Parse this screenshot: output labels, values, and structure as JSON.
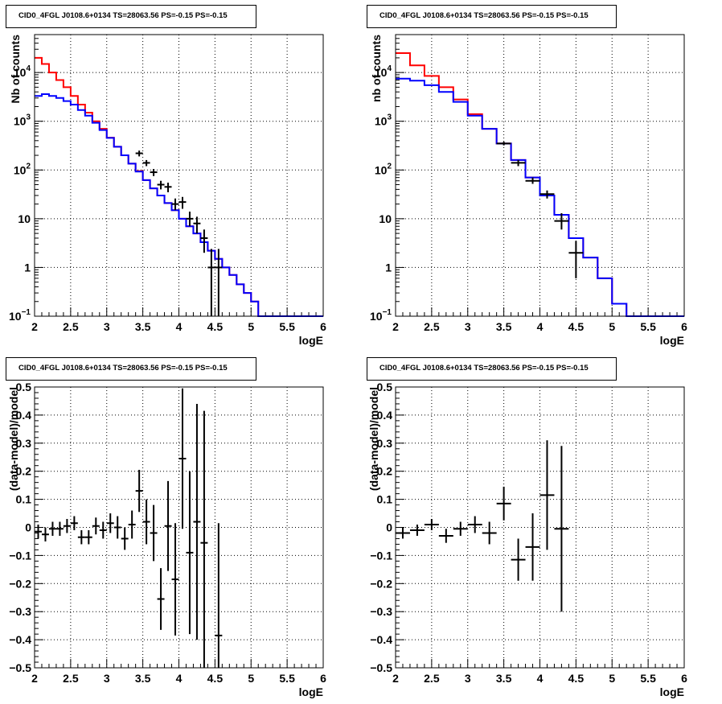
{
  "chart_data": [
    {
      "id": "top-left",
      "type": "histogram-log",
      "title": "CID0_4FGL J0108.6+0134 TS=28063.56 PS=-0.15 PS=-0.15",
      "xlabel": "logE",
      "ylabel": "Nb of counts",
      "xlim": [
        2,
        6
      ],
      "ylim": [
        0.1,
        60000
      ],
      "yscale": "log",
      "grid": true,
      "xticks": [
        "2",
        "2.5",
        "3",
        "3.5",
        "4",
        "4.5",
        "5",
        "5.5",
        "6"
      ],
      "yticks": [
        {
          "v": 0.1,
          "t": "10",
          "sup": "−1"
        },
        {
          "v": 1,
          "t": "1"
        },
        {
          "v": 10,
          "t": "10"
        },
        {
          "v": 100,
          "t": "10",
          "sup": "2"
        },
        {
          "v": 1000,
          "t": "10",
          "sup": "3"
        },
        {
          "v": 10000,
          "t": "10",
          "sup": "4"
        }
      ],
      "bin_edges": [
        2.0,
        2.1,
        2.2,
        2.3,
        2.4,
        2.5,
        2.6,
        2.7,
        2.8,
        2.9,
        3.0,
        3.1,
        3.2,
        3.3,
        3.4,
        3.5,
        3.6,
        3.7,
        3.8,
        3.9,
        4.0,
        4.1,
        4.2,
        4.3,
        4.4,
        4.5,
        4.6,
        4.7,
        4.8,
        4.9,
        5.0,
        5.1,
        5.2,
        5.3,
        5.4,
        5.5,
        5.6,
        5.7,
        5.8,
        5.9,
        6.0
      ],
      "series": [
        {
          "color": "#ff0000",
          "style": "step",
          "values": [
            20000,
            15000,
            10000,
            7000,
            5000,
            3300,
            2200,
            1500,
            1000,
            700,
            460,
            300,
            200,
            135,
            95,
            62,
            42,
            30,
            21,
            15,
            10,
            7,
            5,
            3.3,
            2.2,
            1.5,
            1.0,
            0.7,
            0.45,
            0.3,
            0.2,
            0.1,
            0.1,
            0.1,
            0.1,
            0.1,
            0.1,
            0.1,
            0.1,
            0.1
          ]
        },
        {
          "color": "#0000ff",
          "style": "step",
          "values": [
            3300,
            3600,
            3300,
            3000,
            2600,
            2200,
            1700,
            1300,
            930,
            660,
            455,
            300,
            200,
            135,
            93,
            62,
            42,
            30,
            21,
            15,
            10,
            7,
            5,
            3.3,
            2.2,
            1.5,
            1.0,
            0.7,
            0.45,
            0.3,
            0.2,
            0.1,
            0.1,
            0.1,
            0.1,
            0.1,
            0.1,
            0.1,
            0.1,
            0.1
          ]
        },
        {
          "color": "#000000",
          "style": "errorbar",
          "points": [
            [
              3.45,
              220,
              190,
              250
            ],
            [
              3.55,
              140,
              120,
              160
            ],
            [
              3.65,
              90,
              75,
              105
            ],
            [
              3.75,
              50,
              40,
              60
            ],
            [
              3.85,
              45,
              35,
              55
            ],
            [
              3.95,
              20,
              15,
              26
            ],
            [
              4.05,
              22,
              16,
              28
            ],
            [
              4.15,
              10,
              7,
              14
            ],
            [
              4.25,
              8,
              5,
              11
            ],
            [
              4.35,
              4,
              2,
              6
            ],
            [
              4.45,
              1,
              0.1,
              2.4
            ],
            [
              4.55,
              1,
              0.1,
              2.4
            ]
          ]
        }
      ]
    },
    {
      "id": "top-right",
      "type": "histogram-log",
      "title": "CID0_4FGL J0108.6+0134 TS=28063.56 PS=-0.15 PS=-0.15",
      "xlabel": "logE",
      "ylabel": "nb of counts",
      "xlim": [
        2,
        6
      ],
      "ylim": [
        0.1,
        60000
      ],
      "yscale": "log",
      "grid": true,
      "xticks": [
        "2",
        "2.5",
        "3",
        "3.5",
        "4",
        "4.5",
        "5",
        "5.5",
        "6"
      ],
      "yticks": [
        {
          "v": 0.1,
          "t": "10",
          "sup": "−1"
        },
        {
          "v": 1,
          "t": "1"
        },
        {
          "v": 10,
          "t": "10"
        },
        {
          "v": 100,
          "t": "10",
          "sup": "2"
        },
        {
          "v": 1000,
          "t": "10",
          "sup": "3"
        },
        {
          "v": 10000,
          "t": "10",
          "sup": "4"
        }
      ],
      "bin_edges": [
        2.0,
        2.2,
        2.4,
        2.6,
        2.8,
        3.0,
        3.2,
        3.4,
        3.6,
        3.8,
        4.0,
        4.2,
        4.4,
        4.6,
        4.8,
        5.0,
        5.2,
        5.4,
        5.6,
        5.8,
        6.0
      ],
      "series": [
        {
          "color": "#ff0000",
          "style": "step",
          "values": [
            25000,
            14000,
            8500,
            5000,
            2800,
            1400,
            700,
            350,
            160,
            70,
            30,
            12,
            4,
            1.6,
            0.6,
            0.18,
            0.1,
            0.1,
            0.1,
            0.1
          ]
        },
        {
          "color": "#0000ff",
          "style": "step",
          "values": [
            7500,
            6800,
            5500,
            4000,
            2500,
            1300,
            700,
            350,
            160,
            70,
            30,
            12,
            4,
            1.6,
            0.6,
            0.18,
            0.1,
            0.1,
            0.1,
            0.1
          ]
        },
        {
          "color": "#000000",
          "style": "errorbar",
          "points": [
            [
              3.5,
              350,
              320,
              380
            ],
            [
              3.7,
              140,
              120,
              160
            ],
            [
              3.9,
              60,
              52,
              70
            ],
            [
              4.1,
              32,
              26,
              38
            ],
            [
              4.3,
              9,
              6,
              13
            ],
            [
              4.5,
              2,
              0.6,
              3.5
            ]
          ]
        }
      ]
    },
    {
      "id": "bottom-left",
      "type": "errorbar",
      "title": "CID0_4FGL J0108.6+0134 TS=28063.56 PS=-0.15 PS=-0.15",
      "xlabel": "logE",
      "ylabel": "(data-model)/model",
      "xlim": [
        2,
        6
      ],
      "ylim": [
        -0.5,
        0.5
      ],
      "grid": true,
      "xticks": [
        "2",
        "2.5",
        "3",
        "3.5",
        "4",
        "4.5",
        "5",
        "5.5",
        "6"
      ],
      "yticks": [
        {
          "v": -0.5,
          "t": "−0.5"
        },
        {
          "v": -0.4,
          "t": "−0.4"
        },
        {
          "v": -0.3,
          "t": "−0.3"
        },
        {
          "v": -0.2,
          "t": "−0.2"
        },
        {
          "v": -0.1,
          "t": "−0.1"
        },
        {
          "v": 0,
          "t": "0"
        },
        {
          "v": 0.1,
          "t": "0.1"
        },
        {
          "v": 0.2,
          "t": "0.2"
        },
        {
          "v": 0.3,
          "t": "0.3"
        },
        {
          "v": 0.4,
          "t": "0.4"
        },
        {
          "v": 0.5,
          "t": "0.5"
        }
      ],
      "bin_width": 0.1,
      "points": [
        [
          2.05,
          -0.015,
          0.025
        ],
        [
          2.15,
          -0.025,
          0.025
        ],
        [
          2.25,
          -0.005,
          0.025
        ],
        [
          2.35,
          -0.005,
          0.025
        ],
        [
          2.45,
          0.005,
          0.025
        ],
        [
          2.55,
          0.015,
          0.025
        ],
        [
          2.65,
          -0.035,
          0.025
        ],
        [
          2.75,
          -0.035,
          0.025
        ],
        [
          2.85,
          0.005,
          0.03
        ],
        [
          2.95,
          -0.01,
          0.03
        ],
        [
          3.05,
          0.015,
          0.035
        ],
        [
          3.15,
          0.0,
          0.04
        ],
        [
          3.25,
          -0.04,
          0.04
        ],
        [
          3.35,
          0.01,
          0.05
        ],
        [
          3.45,
          0.13,
          0.075
        ],
        [
          3.55,
          0.02,
          0.08
        ],
        [
          3.65,
          -0.02,
          0.1
        ],
        [
          3.75,
          -0.255,
          0.11
        ],
        [
          3.85,
          0.005,
          0.16
        ],
        [
          3.95,
          -0.185,
          0.2
        ],
        [
          4.05,
          0.245,
          0.25
        ],
        [
          4.15,
          -0.09,
          0.29
        ],
        [
          4.25,
          0.02,
          0.42
        ],
        [
          4.35,
          -0.055,
          0.47
        ],
        [
          4.55,
          -0.385,
          0.4
        ]
      ]
    },
    {
      "id": "bottom-right",
      "type": "errorbar",
      "title": "CID0_4FGL J0108.6+0134 TS=28063.56 PS=-0.15 PS=-0.15",
      "xlabel": "logE",
      "ylabel": "(data-model)/model",
      "xlim": [
        2,
        6
      ],
      "ylim": [
        -0.5,
        0.5
      ],
      "grid": true,
      "xticks": [
        "2",
        "2.5",
        "3",
        "3.5",
        "4",
        "4.5",
        "5",
        "5.5",
        "6"
      ],
      "yticks": [
        {
          "v": -0.5,
          "t": "−0.5"
        },
        {
          "v": -0.4,
          "t": "−0.4"
        },
        {
          "v": -0.3,
          "t": "−0.3"
        },
        {
          "v": -0.2,
          "t": "−0.2"
        },
        {
          "v": -0.1,
          "t": "−0.1"
        },
        {
          "v": 0,
          "t": "0"
        },
        {
          "v": 0.1,
          "t": "0.1"
        },
        {
          "v": 0.2,
          "t": "0.2"
        },
        {
          "v": 0.3,
          "t": "0.3"
        },
        {
          "v": 0.4,
          "t": "0.4"
        },
        {
          "v": 0.5,
          "t": "0.5"
        }
      ],
      "bin_width": 0.2,
      "points": [
        [
          2.1,
          -0.02,
          0.02
        ],
        [
          2.3,
          -0.01,
          0.02
        ],
        [
          2.5,
          0.01,
          0.02
        ],
        [
          2.7,
          -0.03,
          0.025
        ],
        [
          2.9,
          -0.005,
          0.025
        ],
        [
          3.1,
          0.01,
          0.03
        ],
        [
          3.3,
          -0.02,
          0.04
        ],
        [
          3.5,
          0.085,
          0.06
        ],
        [
          3.7,
          -0.115,
          0.075
        ],
        [
          3.9,
          -0.07,
          0.12
        ],
        [
          4.1,
          0.115,
          0.195
        ],
        [
          4.3,
          -0.005,
          0.295
        ]
      ]
    }
  ]
}
